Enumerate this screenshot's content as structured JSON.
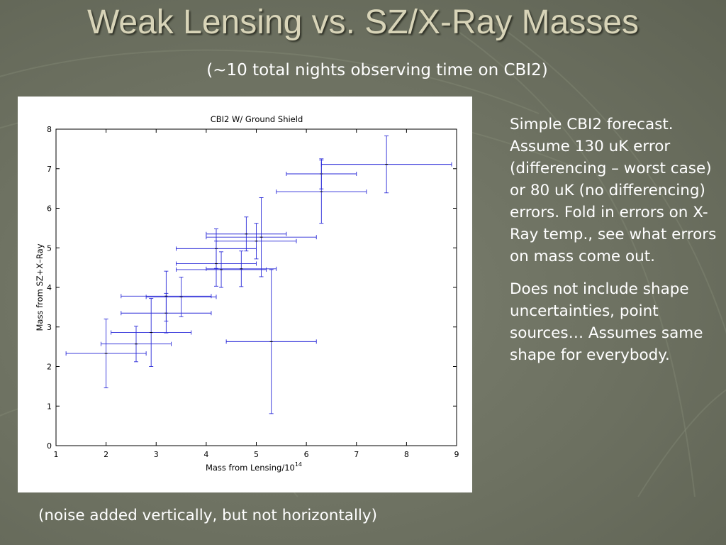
{
  "slide": {
    "title": "Weak Lensing vs. SZ/X-Ray Masses",
    "subtitle": "(~10 total nights observing time on CBI2)",
    "body_paragraphs": [
      "Simple CBI2 forecast. Assume 130 uK error (differencing – worst case) or 80 uK (no differencing) errors. Fold in errors on X-Ray temp., see what errors on mass come out.",
      "Does not include shape uncertainties, point sources… Assumes same shape for everybody."
    ],
    "footnote": "(noise added vertically, but not horizontally)"
  },
  "chart_data": {
    "type": "scatter",
    "title": "CBI2 W/ Ground Shield",
    "xlabel": "Mass from Lensing/10",
    "xlabel_exponent": "14",
    "ylabel": "Mass from SZ+X–Ray",
    "xlim": [
      1,
      9
    ],
    "ylim": [
      0,
      8
    ],
    "xticks": [
      1,
      2,
      3,
      4,
      5,
      6,
      7,
      8,
      9
    ],
    "yticks": [
      0,
      1,
      2,
      3,
      4,
      5,
      6,
      7,
      8
    ],
    "grid": false,
    "color": "#2a2ad8",
    "points": [
      {
        "x": 2.0,
        "y": 2.33,
        "xerr": 0.8,
        "yerr": 0.87
      },
      {
        "x": 2.6,
        "y": 2.57,
        "xerr": 0.7,
        "yerr": 0.45
      },
      {
        "x": 2.9,
        "y": 2.86,
        "xerr": 0.8,
        "yerr": 0.86
      },
      {
        "x": 3.2,
        "y": 3.35,
        "xerr": 0.9,
        "yerr": 0.5
      },
      {
        "x": 3.2,
        "y": 3.78,
        "xerr": 0.9,
        "yerr": 0.63
      },
      {
        "x": 3.5,
        "y": 3.76,
        "xerr": 0.7,
        "yerr": 0.5
      },
      {
        "x": 4.2,
        "y": 4.98,
        "xerr": 0.8,
        "yerr": 0.5
      },
      {
        "x": 4.2,
        "y": 4.6,
        "xerr": 0.8,
        "yerr": 0.57
      },
      {
        "x": 4.3,
        "y": 4.45,
        "xerr": 0.9,
        "yerr": 0.45
      },
      {
        "x": 4.7,
        "y": 4.47,
        "xerr": 0.7,
        "yerr": 0.45
      },
      {
        "x": 4.8,
        "y": 5.35,
        "xerr": 0.8,
        "yerr": 0.43
      },
      {
        "x": 5.0,
        "y": 5.17,
        "xerr": 0.8,
        "yerr": 0.45
      },
      {
        "x": 5.1,
        "y": 5.27,
        "xerr": 1.1,
        "yerr": 1.0
      },
      {
        "x": 5.3,
        "y": 2.63,
        "xerr": 0.9,
        "yerr": 1.82
      },
      {
        "x": 6.3,
        "y": 6.87,
        "xerr": 0.7,
        "yerr": 0.38
      },
      {
        "x": 6.3,
        "y": 6.42,
        "xerr": 0.9,
        "yerr": 0.8
      },
      {
        "x": 7.6,
        "y": 7.11,
        "xerr": 1.3,
        "yerr": 0.72
      }
    ]
  }
}
